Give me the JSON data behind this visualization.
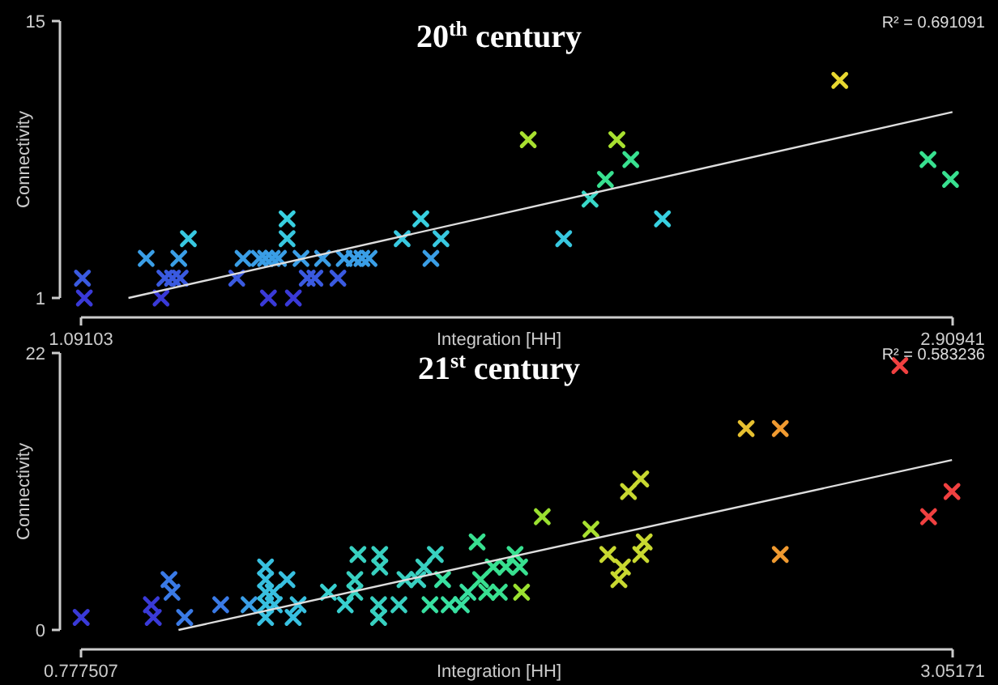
{
  "chart_data": [
    {
      "type": "scatter",
      "title": "20$^{th}$ century",
      "xlabel": "Integration [HH]",
      "ylabel": "Connectivity",
      "annotations": [
        "R² = 0.691091"
      ],
      "xlim": [
        1.09103,
        2.90941
      ],
      "ylim": [
        1,
        15
      ],
      "xticks": [
        1.09103,
        2.90941
      ],
      "yticks": [
        1,
        15
      ],
      "series": [
        {
          "marker": "cross",
          "x": [
            1.094,
            1.098,
            1.227,
            1.258,
            1.266,
            1.282,
            1.298,
            1.295,
            1.315,
            1.416,
            1.429,
            1.463,
            1.476,
            1.49,
            1.503,
            1.482,
            1.521,
            1.521,
            1.534,
            1.55,
            1.563,
            1.579,
            1.595,
            1.627,
            1.64,
            1.661,
            1.677,
            1.692,
            1.761,
            1.8,
            1.821,
            1.842,
            2.024,
            2.098,
            2.153,
            2.185,
            2.209,
            2.238,
            2.304,
            2.674,
            2.858,
            2.905
          ],
          "values": [
            2,
            1,
            3,
            1,
            2,
            2,
            2,
            3,
            4,
            2,
            3,
            3,
            3,
            3,
            3,
            1,
            5,
            4,
            1,
            3,
            2,
            2,
            3,
            2,
            3,
            3,
            3,
            3,
            4,
            5,
            3,
            4,
            9,
            4,
            6,
            7,
            9,
            8,
            5,
            12,
            8,
            7
          ],
          "colors": [
            "#3a5ae0",
            "#3a3ad8",
            "#3a9ee6",
            "#3a3ad8",
            "#3a5ae0",
            "#3a5ae0",
            "#3a5ae0",
            "#3a9ee6",
            "#38c8e0",
            "#3a5ae0",
            "#3a9ee6",
            "#3a9ee6",
            "#3a9ee6",
            "#3a9ee6",
            "#3a9ee6",
            "#3a3ad8",
            "#38d0e0",
            "#38c8e0",
            "#3a3ad8",
            "#3a9ee6",
            "#3a5ae0",
            "#3a5ae0",
            "#3a9ee6",
            "#3a5ae0",
            "#3a9ee6",
            "#3a9ee6",
            "#3a9ee6",
            "#3a9ee6",
            "#38c8e0",
            "#38d0e0",
            "#3a9ee6",
            "#38c8e0",
            "#a8e030",
            "#38c8e0",
            "#38d8c8",
            "#38e090",
            "#a8e030",
            "#38e090",
            "#38d0e0",
            "#e8d830",
            "#38e090",
            "#38e090"
          ]
        },
        {
          "type": "line",
          "x": [
            1.19,
            2.909
          ],
          "values": [
            1,
            10.4
          ],
          "color": "#dddddd"
        }
      ]
    },
    {
      "type": "scatter",
      "title": "21$^{st}$ century",
      "xlabel": "Integration [HH]",
      "ylabel": "Connectivity",
      "annotations": [
        "R² = 0.583236"
      ],
      "xlim": [
        0.777507,
        3.05171
      ],
      "ylim": [
        0,
        22
      ],
      "xticks": [
        0.777507,
        3.05171
      ],
      "yticks": [
        0,
        22
      ],
      "series": [
        {
          "marker": "cross",
          "x": [
            0.778,
            0.961,
            0.966,
            1.007,
            1.015,
            1.048,
            1.142,
            1.216,
            1.259,
            1.259,
            1.259,
            1.259,
            1.259,
            1.279,
            1.282,
            1.315,
            1.331,
            1.344,
            1.423,
            1.467,
            1.492,
            1.492,
            1.5,
            1.557,
            1.557,
            1.554,
            1.554,
            1.607,
            1.623,
            1.656,
            1.672,
            1.702,
            1.688,
            1.721,
            1.738,
            1.77,
            1.787,
            1.811,
            1.82,
            1.836,
            1.853,
            1.869,
            1.886,
            1.91,
            1.922,
            1.927,
            1.981,
            2.108,
            2.152,
            2.19,
            2.181,
            2.238,
            2.247,
            2.206,
            2.238,
            2.513,
            2.602,
            2.602,
            2.914,
            2.989,
            3.05
          ],
          "values": [
            1,
            2,
            1,
            4,
            3,
            1,
            2,
            2,
            5,
            4,
            3,
            2,
            1,
            3,
            2,
            4,
            1,
            2,
            3,
            2,
            4,
            3,
            6,
            6,
            5,
            2,
            1,
            2,
            4,
            4,
            5,
            6,
            2,
            4,
            2,
            2,
            3,
            7,
            4,
            3,
            5,
            3,
            5,
            6,
            5,
            3,
            9,
            8,
            6,
            5,
            4,
            6,
            7,
            11,
            12,
            16,
            16,
            6,
            21,
            9,
            11
          ],
          "colors": [
            "#3a3ad8",
            "#3a3ad8",
            "#3a3ad8",
            "#3a7ae6",
            "#3a7ae6",
            "#3a7ae6",
            "#3a7ae6",
            "#3a9ee6",
            "#38c0e0",
            "#38c0e0",
            "#38c0e0",
            "#38c0e0",
            "#38c0e0",
            "#38c0e0",
            "#38c0e0",
            "#38c0e0",
            "#38c0e0",
            "#38c0e0",
            "#38d0d0",
            "#38d0d0",
            "#38d0c0",
            "#38d0c0",
            "#38d0c0",
            "#38d0c0",
            "#38d0c0",
            "#38d0c0",
            "#38d0c0",
            "#38d0c0",
            "#38d0c0",
            "#38d0c0",
            "#38d0c0",
            "#38d0c0",
            "#38e0a0",
            "#38e0a0",
            "#38e0a0",
            "#38e0a0",
            "#38e0a0",
            "#38e090",
            "#38e090",
            "#38e090",
            "#38e090",
            "#38e090",
            "#38e090",
            "#38e090",
            "#38e090",
            "#9ae030",
            "#9ae030",
            "#a8e030",
            "#c8d830",
            "#c8d830",
            "#c8d830",
            "#c8d830",
            "#c8d830",
            "#c8d830",
            "#c8d830",
            "#e6c030",
            "#f09a30",
            "#f09a30",
            "#f04040",
            "#f04040",
            "#f04040"
          ]
        },
        {
          "type": "line",
          "x": [
            1.032,
            3.05
          ],
          "values": [
            0,
            13.5
          ],
          "color": "#dddddd"
        }
      ]
    }
  ]
}
